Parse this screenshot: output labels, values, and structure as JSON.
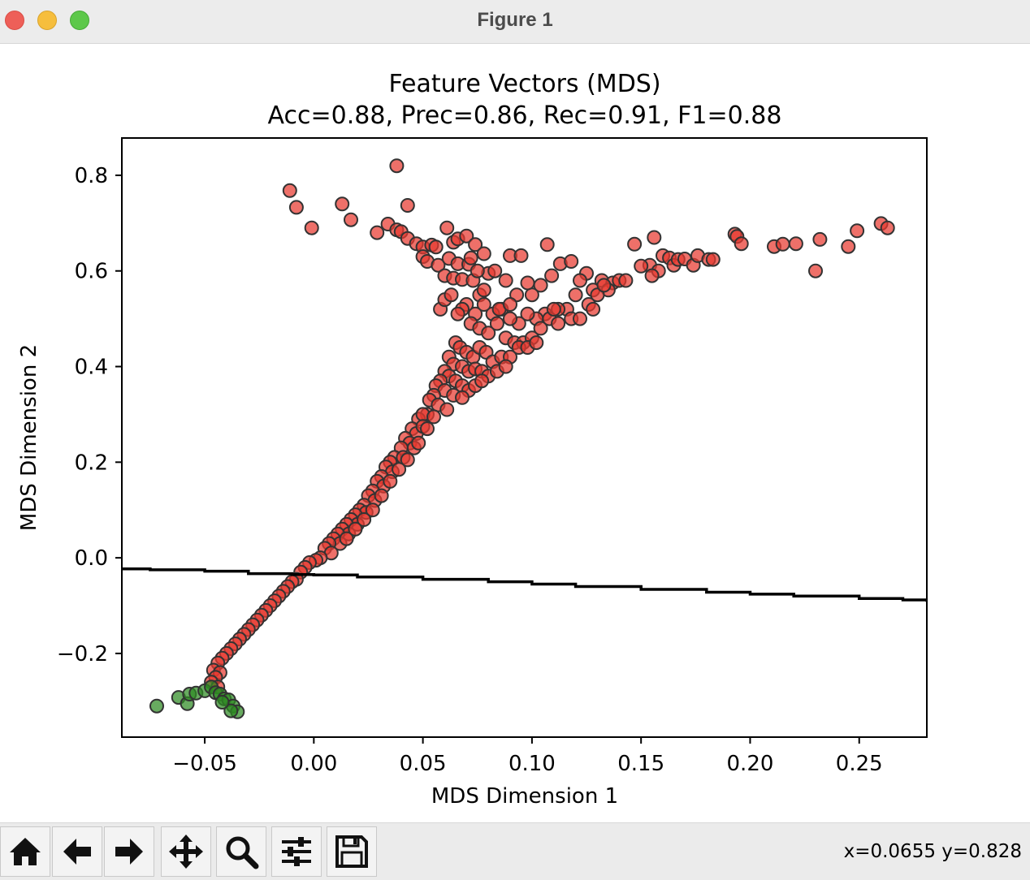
{
  "window": {
    "title": "Figure 1"
  },
  "toolbar": {
    "buttons": [
      {
        "name": "home-button",
        "icon": "home-icon"
      },
      {
        "name": "back-button",
        "icon": "arrow-left-icon"
      },
      {
        "name": "forward-button",
        "icon": "arrow-right-icon"
      },
      {
        "name": "pan-button",
        "icon": "move-icon"
      },
      {
        "name": "zoom-button",
        "icon": "search-icon"
      },
      {
        "name": "configure-subplots-button",
        "icon": "sliders-icon"
      },
      {
        "name": "save-button",
        "icon": "floppy-disk-icon"
      }
    ],
    "coords": "x=0.0655 y=0.828"
  },
  "chart_data": {
    "type": "scatter",
    "title": "Feature Vectors (MDS)",
    "subtitle": "Acc=0.88, Prec=0.86, Rec=0.91, F1=0.88",
    "xlabel": "MDS Dimension 1",
    "ylabel": "MDS Dimension 2",
    "xlim": [
      -0.088,
      0.281
    ],
    "ylim": [
      -0.375,
      0.878
    ],
    "xticks": [
      {
        "value": -0.05,
        "label": "−0.05"
      },
      {
        "value": 0.0,
        "label": "0.00"
      },
      {
        "value": 0.05,
        "label": "0.05"
      },
      {
        "value": 0.1,
        "label": "0.10"
      },
      {
        "value": 0.15,
        "label": "0.15"
      },
      {
        "value": 0.2,
        "label": "0.20"
      },
      {
        "value": 0.25,
        "label": "0.25"
      }
    ],
    "yticks": [
      {
        "value": -0.2,
        "label": "−0.2"
      },
      {
        "value": 0.0,
        "label": "0.0"
      },
      {
        "value": 0.2,
        "label": "0.2"
      },
      {
        "value": 0.4,
        "label": "0.4"
      },
      {
        "value": 0.6,
        "label": "0.6"
      },
      {
        "value": 0.8,
        "label": "0.8"
      }
    ],
    "grid": false,
    "legend": "none",
    "colors": {
      "red": "#e8392f",
      "green": "#2e8b22",
      "edge": "#333333",
      "boundary": "#000000"
    },
    "series": [
      {
        "color": "red",
        "points": [
          [
            0.038,
            0.82
          ],
          [
            -0.011,
            0.768
          ],
          [
            -0.008,
            0.733
          ],
          [
            0.013,
            0.74
          ],
          [
            0.043,
            0.737
          ],
          [
            -0.001,
            0.69
          ],
          [
            0.017,
            0.707
          ],
          [
            0.034,
            0.698
          ],
          [
            0.029,
            0.68
          ],
          [
            0.038,
            0.686
          ],
          [
            0.04,
            0.682
          ],
          [
            0.043,
            0.668
          ],
          [
            0.047,
            0.657
          ],
          [
            0.05,
            0.65
          ],
          [
            0.054,
            0.654
          ],
          [
            0.056,
            0.65
          ],
          [
            0.061,
            0.69
          ],
          [
            0.064,
            0.66
          ],
          [
            0.066,
            0.667
          ],
          [
            0.07,
            0.673
          ],
          [
            0.074,
            0.655
          ],
          [
            0.078,
            0.636
          ],
          [
            0.09,
            0.632
          ],
          [
            0.095,
            0.632
          ],
          [
            0.107,
            0.655
          ],
          [
            0.05,
            0.63
          ],
          [
            0.052,
            0.62
          ],
          [
            0.057,
            0.612
          ],
          [
            0.062,
            0.626
          ],
          [
            0.066,
            0.615
          ],
          [
            0.071,
            0.614
          ],
          [
            0.072,
            0.627
          ],
          [
            0.06,
            0.59
          ],
          [
            0.064,
            0.585
          ],
          [
            0.068,
            0.582
          ],
          [
            0.073,
            0.58
          ],
          [
            0.076,
            0.55
          ],
          [
            0.078,
            0.56
          ],
          [
            0.08,
            0.595
          ],
          [
            0.088,
            0.58
          ],
          [
            0.093,
            0.55
          ],
          [
            0.1,
            0.55
          ],
          [
            0.109,
            0.59
          ],
          [
            0.113,
            0.615
          ],
          [
            0.118,
            0.62
          ],
          [
            0.125,
            0.595
          ],
          [
            0.128,
            0.56
          ],
          [
            0.132,
            0.58
          ],
          [
            0.137,
            0.575
          ],
          [
            0.14,
            0.58
          ],
          [
            0.143,
            0.58
          ],
          [
            0.147,
            0.656
          ],
          [
            0.154,
            0.612
          ],
          [
            0.156,
            0.67
          ],
          [
            0.158,
            0.6
          ],
          [
            0.16,
            0.632
          ],
          [
            0.163,
            0.627
          ],
          [
            0.165,
            0.612
          ],
          [
            0.167,
            0.624
          ],
          [
            0.17,
            0.625
          ],
          [
            0.174,
            0.612
          ],
          [
            0.176,
            0.632
          ],
          [
            0.181,
            0.624
          ],
          [
            0.183,
            0.624
          ],
          [
            0.193,
            0.677
          ],
          [
            0.194,
            0.672
          ],
          [
            0.196,
            0.657
          ],
          [
            0.211,
            0.651
          ],
          [
            0.215,
            0.656
          ],
          [
            0.221,
            0.657
          ],
          [
            0.23,
            0.6
          ],
          [
            0.232,
            0.666
          ],
          [
            0.245,
            0.651
          ],
          [
            0.249,
            0.684
          ],
          [
            0.26,
            0.699
          ],
          [
            0.263,
            0.69
          ],
          [
            0.155,
            0.59
          ],
          [
            0.15,
            0.61
          ],
          [
            0.135,
            0.56
          ],
          [
            0.13,
            0.55
          ],
          [
            0.126,
            0.53
          ],
          [
            0.12,
            0.55
          ],
          [
            0.116,
            0.52
          ],
          [
            0.112,
            0.52
          ],
          [
            0.106,
            0.51
          ],
          [
            0.102,
            0.5
          ],
          [
            0.098,
            0.51
          ],
          [
            0.094,
            0.49
          ],
          [
            0.09,
            0.5
          ],
          [
            0.086,
            0.52
          ],
          [
            0.082,
            0.51
          ],
          [
            0.078,
            0.53
          ],
          [
            0.074,
            0.51
          ],
          [
            0.07,
            0.53
          ],
          [
            0.068,
            0.52
          ],
          [
            0.066,
            0.51
          ],
          [
            0.072,
            0.49
          ],
          [
            0.076,
            0.48
          ],
          [
            0.08,
            0.47
          ],
          [
            0.084,
            0.49
          ],
          [
            0.088,
            0.46
          ],
          [
            0.092,
            0.45
          ],
          [
            0.096,
            0.45
          ],
          [
            0.1,
            0.46
          ],
          [
            0.104,
            0.48
          ],
          [
            0.108,
            0.5
          ],
          [
            0.112,
            0.49
          ],
          [
            0.118,
            0.5
          ],
          [
            0.122,
            0.5
          ],
          [
            0.128,
            0.52
          ],
          [
            0.11,
            0.52
          ],
          [
            0.065,
            0.45
          ],
          [
            0.067,
            0.44
          ],
          [
            0.07,
            0.43
          ],
          [
            0.073,
            0.42
          ],
          [
            0.076,
            0.44
          ],
          [
            0.079,
            0.43
          ],
          [
            0.082,
            0.41
          ],
          [
            0.086,
            0.42
          ],
          [
            0.09,
            0.42
          ],
          [
            0.094,
            0.44
          ],
          [
            0.098,
            0.44
          ],
          [
            0.102,
            0.45
          ],
          [
            0.062,
            0.42
          ],
          [
            0.064,
            0.405
          ],
          [
            0.068,
            0.4
          ],
          [
            0.071,
            0.39
          ],
          [
            0.074,
            0.395
          ],
          [
            0.077,
            0.39
          ],
          [
            0.08,
            0.38
          ],
          [
            0.084,
            0.39
          ],
          [
            0.088,
            0.4
          ],
          [
            0.06,
            0.39
          ],
          [
            0.062,
            0.38
          ],
          [
            0.065,
            0.37
          ],
          [
            0.068,
            0.36
          ],
          [
            0.071,
            0.35
          ],
          [
            0.074,
            0.36
          ],
          [
            0.077,
            0.37
          ],
          [
            0.058,
            0.37
          ],
          [
            0.056,
            0.36
          ],
          [
            0.06,
            0.35
          ],
          [
            0.064,
            0.34
          ],
          [
            0.068,
            0.335
          ],
          [
            0.055,
            0.34
          ],
          [
            0.053,
            0.33
          ],
          [
            0.057,
            0.32
          ],
          [
            0.061,
            0.31
          ],
          [
            0.052,
            0.3
          ],
          [
            0.048,
            0.29
          ],
          [
            0.05,
            0.3
          ],
          [
            0.055,
            0.295
          ],
          [
            0.045,
            0.27
          ],
          [
            0.047,
            0.26
          ],
          [
            0.05,
            0.275
          ],
          [
            0.052,
            0.27
          ],
          [
            0.042,
            0.25
          ],
          [
            0.044,
            0.24
          ],
          [
            0.046,
            0.23
          ],
          [
            0.048,
            0.24
          ],
          [
            0.04,
            0.23
          ],
          [
            0.037,
            0.21
          ],
          [
            0.041,
            0.21
          ],
          [
            0.043,
            0.205
          ],
          [
            0.035,
            0.2
          ],
          [
            0.033,
            0.19
          ],
          [
            0.036,
            0.18
          ],
          [
            0.039,
            0.185
          ],
          [
            0.031,
            0.17
          ],
          [
            0.029,
            0.16
          ],
          [
            0.032,
            0.15
          ],
          [
            0.035,
            0.16
          ],
          [
            0.027,
            0.14
          ],
          [
            0.025,
            0.13
          ],
          [
            0.028,
            0.12
          ],
          [
            0.031,
            0.13
          ],
          [
            0.023,
            0.11
          ],
          [
            0.021,
            0.1
          ],
          [
            0.024,
            0.095
          ],
          [
            0.027,
            0.1
          ],
          [
            0.019,
            0.09
          ],
          [
            0.017,
            0.08
          ],
          [
            0.02,
            0.07
          ],
          [
            0.023,
            0.08
          ],
          [
            0.015,
            0.07
          ],
          [
            0.013,
            0.06
          ],
          [
            0.016,
            0.05
          ],
          [
            0.019,
            0.06
          ],
          [
            0.011,
            0.05
          ],
          [
            0.009,
            0.04
          ],
          [
            0.012,
            0.03
          ],
          [
            0.015,
            0.04
          ],
          [
            0.007,
            0.03
          ],
          [
            0.005,
            0.02
          ],
          [
            0.008,
            0.01
          ],
          [
            0.003,
            0.0
          ],
          [
            0.001,
            -0.005
          ],
          [
            -0.002,
            -0.01
          ],
          [
            -0.004,
            -0.02
          ],
          [
            -0.006,
            -0.03
          ],
          [
            -0.008,
            -0.045
          ],
          [
            -0.01,
            -0.05
          ],
          [
            -0.012,
            -0.06
          ],
          [
            -0.014,
            -0.07
          ],
          [
            -0.016,
            -0.08
          ],
          [
            -0.018,
            -0.09
          ],
          [
            -0.02,
            -0.1
          ],
          [
            -0.022,
            -0.11
          ],
          [
            -0.024,
            -0.12
          ],
          [
            -0.026,
            -0.13
          ],
          [
            -0.028,
            -0.14
          ],
          [
            -0.03,
            -0.15
          ],
          [
            -0.032,
            -0.16
          ],
          [
            -0.034,
            -0.17
          ],
          [
            -0.036,
            -0.18
          ],
          [
            -0.038,
            -0.19
          ],
          [
            -0.04,
            -0.2
          ],
          [
            -0.042,
            -0.21
          ],
          [
            -0.044,
            -0.22
          ],
          [
            -0.046,
            -0.235
          ],
          [
            -0.043,
            -0.24
          ],
          [
            -0.045,
            -0.25
          ],
          [
            -0.047,
            -0.26
          ],
          [
            -0.044,
            -0.27
          ],
          [
            0.058,
            0.52
          ],
          [
            0.06,
            0.54
          ],
          [
            0.063,
            0.55
          ],
          [
            0.075,
            0.6
          ],
          [
            0.083,
            0.6
          ],
          [
            0.098,
            0.575
          ],
          [
            0.104,
            0.57
          ],
          [
            0.122,
            0.58
          ],
          [
            0.133,
            0.57
          ],
          [
            0.085,
            0.52
          ],
          [
            0.09,
            0.53
          ]
        ]
      },
      {
        "color": "green",
        "points": [
          [
            -0.072,
            -0.31
          ],
          [
            -0.062,
            -0.292
          ],
          [
            -0.058,
            -0.305
          ],
          [
            -0.057,
            -0.285
          ],
          [
            -0.054,
            -0.283
          ],
          [
            -0.05,
            -0.278
          ],
          [
            -0.047,
            -0.27
          ],
          [
            -0.045,
            -0.282
          ],
          [
            -0.043,
            -0.285
          ],
          [
            -0.041,
            -0.295
          ],
          [
            -0.039,
            -0.297
          ],
          [
            -0.037,
            -0.31
          ],
          [
            -0.035,
            -0.322
          ],
          [
            -0.038,
            -0.32
          ],
          [
            -0.042,
            -0.302
          ]
        ]
      }
    ],
    "boundary_line": [
      [
        -0.088,
        -0.023
      ],
      [
        -0.075,
        -0.025
      ],
      [
        -0.05,
        -0.028
      ],
      [
        -0.03,
        -0.033
      ],
      [
        -0.01,
        -0.035
      ],
      [
        0.0,
        -0.036
      ],
      [
        0.02,
        -0.04
      ],
      [
        0.05,
        -0.045
      ],
      [
        0.08,
        -0.05
      ],
      [
        0.1,
        -0.055
      ],
      [
        0.12,
        -0.06
      ],
      [
        0.15,
        -0.066
      ],
      [
        0.18,
        -0.072
      ],
      [
        0.2,
        -0.076
      ],
      [
        0.22,
        -0.08
      ],
      [
        0.25,
        -0.085
      ],
      [
        0.27,
        -0.088
      ],
      [
        0.281,
        -0.092
      ]
    ]
  }
}
